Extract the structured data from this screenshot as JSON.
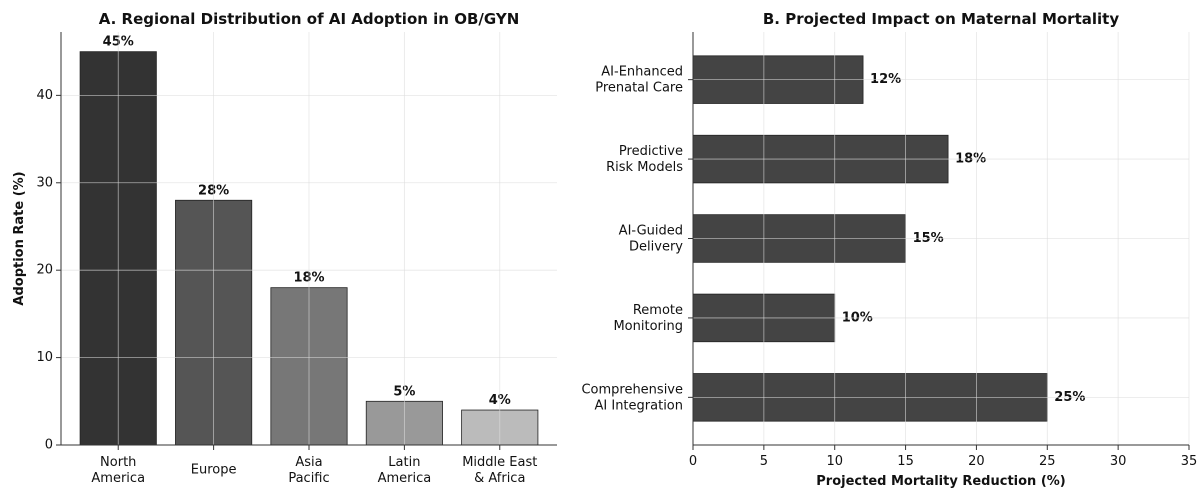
{
  "chart_data": [
    {
      "type": "bar",
      "title": "A. Regional Distribution of AI Adoption in OB/GYN",
      "ylabel": "Adoption Rate (%)",
      "categories": [
        "North\nAmerica",
        "Europe",
        "Asia\nPacific",
        "Latin\nAmerica",
        "Middle East\n& Africa"
      ],
      "values": [
        45,
        28,
        18,
        5,
        4
      ],
      "value_labels": [
        "45%",
        "28%",
        "18%",
        "5%",
        "4%"
      ],
      "colors": [
        "#333333",
        "#555555",
        "#777777",
        "#999999",
        "#bbbbbb"
      ],
      "ylim": [
        0,
        47.25
      ],
      "yticks": [
        0,
        10,
        20,
        30,
        40
      ],
      "grid": true
    },
    {
      "type": "barh",
      "title": "B. Projected Impact on Maternal Mortality",
      "xlabel": "Projected Mortality Reduction (%)",
      "categories": [
        "AI-Enhanced\nPrenatal Care",
        "Predictive\nRisk Models",
        "AI-Guided\nDelivery",
        "Remote\nMonitoring",
        "Comprehensive\nAI Integration"
      ],
      "values": [
        12,
        18,
        15,
        10,
        25
      ],
      "value_labels": [
        "12%",
        "18%",
        "15%",
        "10%",
        "25%"
      ],
      "color": "#444444",
      "xlim": [
        0,
        35
      ],
      "xticks": [
        0,
        5,
        10,
        15,
        20,
        25,
        30,
        35
      ],
      "grid": true
    }
  ]
}
